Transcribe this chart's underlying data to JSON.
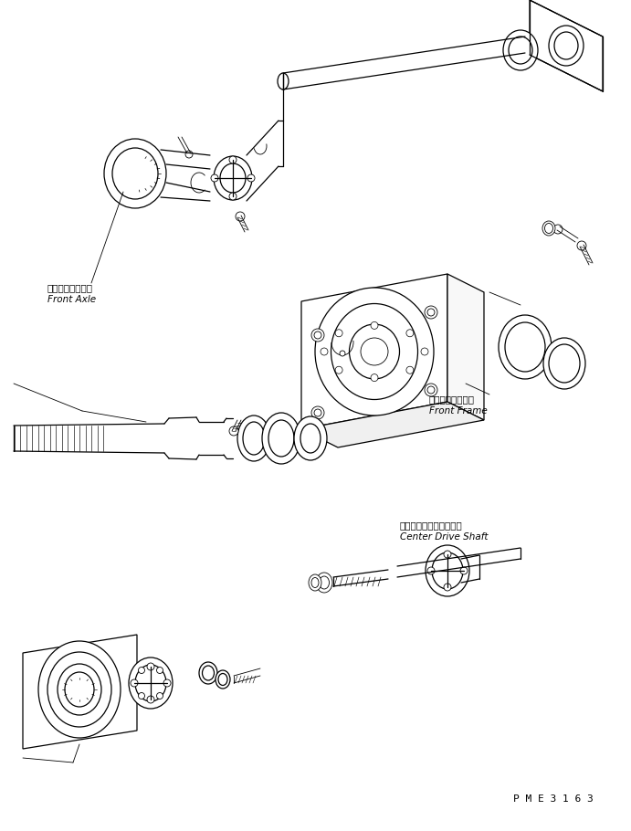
{
  "background_color": "#ffffff",
  "line_color": "#000000",
  "text_color": "#000000",
  "labels": {
    "front_axle_jp": "フロントアクスル",
    "front_axle_en": "Front Axle",
    "front_frame_jp": "フロントフレーム",
    "front_frame_en": "Front Frame",
    "center_drive_shaft_jp": "センタドライブシャフト",
    "center_drive_shaft_en": "Center Drive Shaft",
    "part_number": "P M E 3 1 6 3"
  },
  "figsize": [
    6.91,
    9.1
  ],
  "dpi": 100
}
